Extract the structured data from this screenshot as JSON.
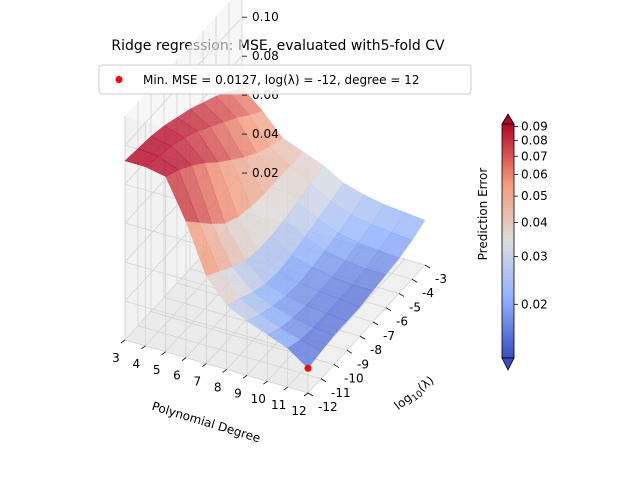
{
  "chart_data": {
    "type": "surface",
    "title": "Ridge regression: MSE, evaluated with5-fold CV",
    "legend": {
      "placement": "top",
      "label": "Min. MSE = 0.0127, log(λ) = -12, degree = 12",
      "marker_color": "#ff0000"
    },
    "xlabel": "Polynomial Degree",
    "ylabel_parts": [
      "log",
      "10",
      "(λ)"
    ],
    "zlabel": "Prediction Error",
    "x_ticks": [
      "3",
      "4",
      "5",
      "6",
      "7",
      "8",
      "9",
      "10",
      "11",
      "12"
    ],
    "y_ticks": [
      "-3",
      "-4",
      "-5",
      "-6",
      "-7",
      "-8",
      "-9",
      "-10",
      "-11",
      "-12"
    ],
    "z_ticks": [
      "0.02",
      "0.04",
      "0.06",
      "0.08",
      "0.10"
    ],
    "zlim": [
      0.0,
      0.115
    ],
    "colorbar": {
      "colormap": "coolwarm",
      "scale": "log",
      "range": [
        0.0127,
        0.092
      ],
      "ticks": [
        0.09,
        0.08,
        0.07,
        0.06,
        0.05,
        0.04,
        0.03,
        0.02
      ],
      "tick_labels": [
        "0.09",
        "0.08",
        "0.07",
        "0.06",
        "0.05",
        "0.04",
        "0.03",
        "0.02"
      ]
    },
    "degrees": [
      3,
      4,
      5,
      6,
      7,
      8,
      9,
      10,
      11,
      12
    ],
    "log_lambda": [
      -12,
      -11,
      -10,
      -9,
      -8,
      -7,
      -6,
      -5,
      -4,
      -3
    ],
    "z": [
      [
        0.092,
        0.091,
        0.09,
        0.088,
        0.085,
        0.082,
        0.078,
        0.074,
        0.069,
        0.064
      ],
      [
        0.092,
        0.09,
        0.088,
        0.085,
        0.081,
        0.076,
        0.071,
        0.066,
        0.06,
        0.055
      ],
      [
        0.09,
        0.086,
        0.081,
        0.075,
        0.068,
        0.062,
        0.056,
        0.051,
        0.047,
        0.044
      ],
      [
        0.07,
        0.062,
        0.054,
        0.047,
        0.043,
        0.041,
        0.04,
        0.04,
        0.04,
        0.04
      ],
      [
        0.045,
        0.04,
        0.035,
        0.031,
        0.029,
        0.029,
        0.03,
        0.032,
        0.034,
        0.036
      ],
      [
        0.033,
        0.029,
        0.025,
        0.022,
        0.021,
        0.022,
        0.024,
        0.026,
        0.028,
        0.03
      ],
      [
        0.028,
        0.024,
        0.021,
        0.019,
        0.018,
        0.019,
        0.02,
        0.022,
        0.024,
        0.027
      ],
      [
        0.024,
        0.02,
        0.018,
        0.017,
        0.017,
        0.017,
        0.018,
        0.02,
        0.022,
        0.025
      ],
      [
        0.02,
        0.017,
        0.016,
        0.016,
        0.016,
        0.016,
        0.017,
        0.019,
        0.021,
        0.024
      ],
      [
        0.0127,
        0.014,
        0.015,
        0.015,
        0.015,
        0.016,
        0.017,
        0.018,
        0.02,
        0.023
      ]
    ],
    "minimum": {
      "degree": 12,
      "log_lambda": -12,
      "mse": 0.0127
    }
  }
}
